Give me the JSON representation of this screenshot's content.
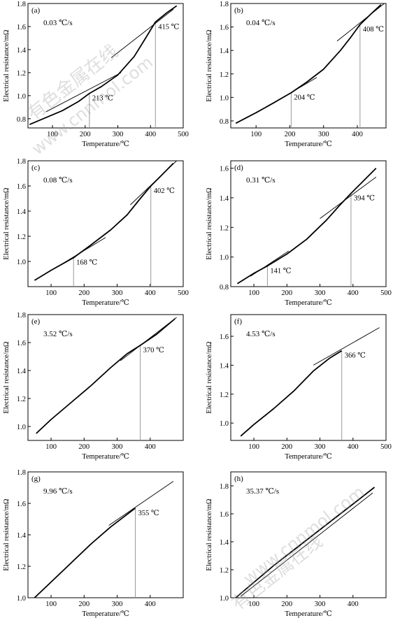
{
  "watermark": {
    "cn": "有色金属在线",
    "url": "www.cnnmol.com"
  },
  "chart_data": [
    {
      "type": "line",
      "panel_label": "(a)",
      "rate": "0.03 ℃/s",
      "xlabel": "Temperature/℃",
      "ylabel": "Electrical resistance/mΩ",
      "xlim": [
        25,
        500
      ],
      "ylim": [
        0.72,
        1.8
      ],
      "xticks": [
        100,
        200,
        300,
        400,
        500
      ],
      "yticks": [
        0.8,
        1.0,
        1.2,
        1.4,
        1.6,
        1.8
      ],
      "curve": {
        "x": [
          30,
          80,
          130,
          180,
          213,
          250,
          300,
          350,
          385,
          415,
          450,
          480
        ],
        "y": [
          0.75,
          0.81,
          0.87,
          0.95,
          1.02,
          1.08,
          1.18,
          1.34,
          1.5,
          1.64,
          1.72,
          1.78
        ]
      },
      "tangents": [
        {
          "x": [
            80,
            310
          ],
          "y": [
            0.86,
            1.2
          ]
        },
        {
          "x": [
            280,
            470
          ],
          "y": [
            1.33,
            1.75
          ]
        }
      ],
      "transitions": [
        {
          "x": 213,
          "label": "213 ℃"
        },
        {
          "x": 415,
          "label": "415 ℃"
        }
      ]
    },
    {
      "type": "line",
      "panel_label": "(b)",
      "rate": "0.04 ℃/s",
      "xlabel": "Temperature/℃",
      "ylabel": "Electrical resistance/mΩ",
      "xlim": [
        25,
        485
      ],
      "ylim": [
        0.74,
        1.8
      ],
      "xticks": [
        100,
        200,
        300,
        400
      ],
      "yticks": [
        0.8,
        1.0,
        1.2,
        1.4,
        1.6,
        1.8
      ],
      "curve": {
        "x": [
          40,
          100,
          150,
          204,
          250,
          300,
          350,
          380,
          408,
          440,
          470
        ],
        "y": [
          0.78,
          0.87,
          0.95,
          1.04,
          1.13,
          1.24,
          1.4,
          1.51,
          1.62,
          1.71,
          1.79
        ]
      },
      "tangents": [
        {
          "x": [
            150,
            280
          ],
          "y": [
            0.95,
            1.17
          ]
        },
        {
          "x": [
            340,
            480
          ],
          "y": [
            1.48,
            1.82
          ]
        }
      ],
      "transitions": [
        {
          "x": 204,
          "label": "204 ℃"
        },
        {
          "x": 408,
          "label": "408 ℃"
        }
      ]
    },
    {
      "type": "line",
      "panel_label": "(c)",
      "rate": "0.08 ℃/s",
      "xlabel": "Temperature/℃",
      "ylabel": "Electrical resistance/mΩ",
      "xlim": [
        30,
        500
      ],
      "ylim": [
        0.8,
        1.8
      ],
      "xticks": [
        100,
        200,
        300,
        400,
        500
      ],
      "yticks": [
        1.0,
        1.2,
        1.4,
        1.6,
        1.8
      ],
      "curve": {
        "x": [
          50,
          100,
          168,
          220,
          280,
          330,
          370,
          402,
          440,
          470
        ],
        "y": [
          0.85,
          0.93,
          1.03,
          1.13,
          1.25,
          1.37,
          1.5,
          1.6,
          1.7,
          1.78
        ]
      },
      "tangents": [
        {
          "x": [
            120,
            265
          ],
          "y": [
            0.96,
            1.19
          ]
        },
        {
          "x": [
            340,
            480
          ],
          "y": [
            1.45,
            1.8
          ]
        }
      ],
      "transitions": [
        {
          "x": 168,
          "label": "168 ℃"
        },
        {
          "x": 402,
          "label": "402 ℃"
        }
      ]
    },
    {
      "type": "line",
      "panel_label": "(d)",
      "rate": "0.31 ℃/s",
      "xlabel": "Temperature/℃",
      "ylabel": "Electrical resistance/mΩ",
      "xlim": [
        30,
        500
      ],
      "ylim": [
        0.8,
        1.65
      ],
      "xticks": [
        100,
        200,
        300,
        400,
        500
      ],
      "yticks": [
        0.8,
        1.0,
        1.2,
        1.4,
        1.6
      ],
      "curve": {
        "x": [
          50,
          100,
          141,
          200,
          260,
          320,
          360,
          394,
          430,
          470
        ],
        "y": [
          0.82,
          0.89,
          0.94,
          1.02,
          1.12,
          1.25,
          1.35,
          1.43,
          1.51,
          1.6
        ]
      },
      "tangents": [
        {
          "x": [
            90,
            205
          ],
          "y": [
            0.87,
            1.04
          ]
        },
        {
          "x": [
            300,
            470
          ],
          "y": [
            1.26,
            1.54
          ]
        }
      ],
      "transitions": [
        {
          "x": 141,
          "label": "141 ℃"
        },
        {
          "x": 394,
          "label": "394 ℃"
        }
      ]
    },
    {
      "type": "line",
      "panel_label": "(e)",
      "rate": "3.52 ℃/s",
      "xlabel": "Temperature/℃",
      "ylabel": "Electrical resistance/mΩ",
      "xlim": [
        30,
        500
      ],
      "ylim": [
        0.9,
        1.8
      ],
      "xticks": [
        100,
        200,
        300,
        400
      ],
      "yticks": [
        1.0,
        1.2,
        1.4,
        1.6,
        1.8
      ],
      "curve": {
        "x": [
          55,
          100,
          160,
          220,
          280,
          330,
          370,
          420,
          475
        ],
        "y": [
          0.95,
          1.05,
          1.17,
          1.29,
          1.42,
          1.52,
          1.58,
          1.66,
          1.77
        ]
      },
      "tangents": [
        {
          "x": [
            310,
            480
          ],
          "y": [
            1.47,
            1.78
          ]
        }
      ],
      "transitions": [
        {
          "x": 370,
          "label": "370 ℃"
        }
      ]
    },
    {
      "type": "line",
      "panel_label": "(f)",
      "rate": "4.53 ℃/s",
      "xlabel": "Temperature/℃",
      "ylabel": "Electrical resistance/mΩ",
      "xlim": [
        30,
        500
      ],
      "ylim": [
        0.88,
        1.75
      ],
      "xticks": [
        100,
        200,
        300,
        400,
        500
      ],
      "yticks": [
        1.0,
        1.2,
        1.4,
        1.6
      ],
      "curve": {
        "x": [
          60,
          100,
          160,
          220,
          280,
          330,
          366
        ],
        "y": [
          0.91,
          0.99,
          1.1,
          1.22,
          1.36,
          1.45,
          1.5
        ]
      },
      "tangents": [
        {
          "x": [
            280,
            480
          ],
          "y": [
            1.4,
            1.66
          ]
        }
      ],
      "transitions": [
        {
          "x": 366,
          "label": "366 ℃"
        }
      ]
    },
    {
      "type": "line",
      "panel_label": "(g)",
      "rate": "9.96 ℃/s",
      "xlabel": "Temperature/℃",
      "ylabel": "Electrical resistance/mΩ",
      "xlim": [
        30,
        500
      ],
      "ylim": [
        1.0,
        1.8
      ],
      "xticks": [
        100,
        200,
        300,
        400
      ],
      "yticks": [
        1.0,
        1.2,
        1.4,
        1.6,
        1.8
      ],
      "curve": {
        "x": [
          50,
          100,
          160,
          220,
          280,
          330,
          355
        ],
        "y": [
          1.0,
          1.1,
          1.22,
          1.34,
          1.45,
          1.53,
          1.57
        ]
      },
      "tangents": [
        {
          "x": [
            275,
            470
          ],
          "y": [
            1.46,
            1.74
          ]
        }
      ],
      "transitions": [
        {
          "x": 355,
          "label": "355 ℃"
        }
      ]
    },
    {
      "type": "line",
      "panel_label": "(h)",
      "rate": "35.37 ℃/s",
      "xlabel": "Temperature/℃",
      "ylabel": "Electrical resistance/mΩ",
      "xlim": [
        30,
        500
      ],
      "ylim": [
        1.0,
        1.9
      ],
      "xticks": [
        100,
        200,
        300,
        400
      ],
      "yticks": [
        1.0,
        1.2,
        1.4,
        1.6,
        1.8
      ],
      "curve": {
        "x": [
          45,
          100,
          160,
          220,
          280,
          340,
          400,
          465
        ],
        "y": [
          1.0,
          1.11,
          1.23,
          1.34,
          1.45,
          1.56,
          1.67,
          1.79
        ]
      },
      "tangents": [
        {
          "x": [
            60,
            460
          ],
          "y": [
            1.01,
            1.75
          ]
        }
      ],
      "transitions": []
    }
  ]
}
